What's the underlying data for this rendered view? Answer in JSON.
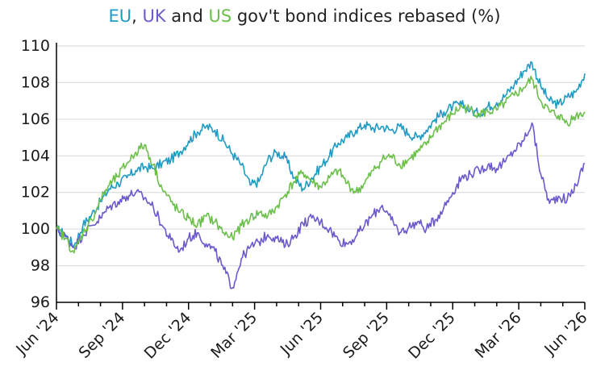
{
  "chart_data": {
    "type": "line",
    "title_parts": [
      {
        "text": "EU",
        "color": "#1f9bc4"
      },
      {
        "text": ", ",
        "color": "#222222"
      },
      {
        "text": "UK",
        "color": "#6a5acd"
      },
      {
        "text": " and ",
        "color": "#222222"
      },
      {
        "text": "US",
        "color": "#6cc04a"
      },
      {
        "text": " gov't bond indices rebased (%)",
        "color": "#222222"
      }
    ],
    "x_ticks": [
      "Jun '24",
      "Sep '24",
      "Dec '24",
      "Mar '25",
      "Jun '25",
      "Sep '25",
      "Dec '25",
      "Mar '26",
      "Jun '26"
    ],
    "y_ticks": [
      "96",
      "98",
      "100",
      "102",
      "104",
      "106",
      "108",
      "110"
    ],
    "ylim": [
      96,
      110
    ],
    "xlim": [
      0,
      24
    ],
    "grid": "horizontal",
    "series": [
      {
        "name": "EU",
        "color": "#1f9bc4",
        "points": [
          [
            0,
            100
          ],
          [
            0.4,
            99.7
          ],
          [
            0.8,
            99.1
          ],
          [
            1.2,
            100.2
          ],
          [
            1.6,
            100.8
          ],
          [
            2,
            101.5
          ],
          [
            2.4,
            102.2
          ],
          [
            2.8,
            102.5
          ],
          [
            3.2,
            102.8
          ],
          [
            3.6,
            103.2
          ],
          [
            4,
            103.4
          ],
          [
            4.4,
            103.3
          ],
          [
            4.8,
            103.6
          ],
          [
            5.2,
            103.8
          ],
          [
            5.6,
            104.2
          ],
          [
            6,
            104.8
          ],
          [
            6.4,
            105.3
          ],
          [
            6.8,
            105.6
          ],
          [
            7.2,
            105.4
          ],
          [
            7.6,
            104.8
          ],
          [
            8,
            104.1
          ],
          [
            8.4,
            103.5
          ],
          [
            8.8,
            102.4
          ],
          [
            9.2,
            102.6
          ],
          [
            9.6,
            103.8
          ],
          [
            10,
            104.2
          ],
          [
            10.4,
            103.9
          ],
          [
            10.8,
            102.8
          ],
          [
            11.2,
            102.2
          ],
          [
            11.6,
            102.8
          ],
          [
            12,
            103.4
          ],
          [
            12.4,
            104.0
          ],
          [
            12.8,
            104.7
          ],
          [
            13.2,
            105.0
          ],
          [
            13.6,
            105.4
          ],
          [
            14,
            105.7
          ],
          [
            14.4,
            105.5
          ],
          [
            14.8,
            105.6
          ],
          [
            15.2,
            105.4
          ],
          [
            15.6,
            105.6
          ],
          [
            16,
            105.2
          ],
          [
            16.4,
            105.0
          ],
          [
            16.8,
            105.4
          ],
          [
            17.2,
            106.0
          ],
          [
            17.6,
            106.4
          ],
          [
            18,
            106.7
          ],
          [
            18.4,
            106.8
          ],
          [
            18.8,
            106.5
          ],
          [
            19.2,
            106.3
          ],
          [
            19.6,
            106.7
          ],
          [
            20,
            106.9
          ],
          [
            20.4,
            107.3
          ],
          [
            20.8,
            107.9
          ],
          [
            21.2,
            108.6
          ],
          [
            21.6,
            109.1
          ],
          [
            22,
            107.8
          ],
          [
            22.4,
            107.0
          ],
          [
            22.8,
            106.8
          ],
          [
            23.2,
            107.2
          ],
          [
            23.6,
            107.5
          ],
          [
            24,
            108.5
          ]
        ]
      },
      {
        "name": "UK",
        "color": "#6a5acd",
        "points": [
          [
            0,
            100
          ],
          [
            0.4,
            99.6
          ],
          [
            0.8,
            99.0
          ],
          [
            1.2,
            99.7
          ],
          [
            1.6,
            100.2
          ],
          [
            2,
            100.6
          ],
          [
            2.4,
            101.2
          ],
          [
            2.8,
            101.5
          ],
          [
            3.2,
            101.8
          ],
          [
            3.6,
            102.0
          ],
          [
            4,
            101.7
          ],
          [
            4.4,
            101.2
          ],
          [
            4.8,
            100.2
          ],
          [
            5.2,
            99.4
          ],
          [
            5.6,
            98.8
          ],
          [
            6,
            99.5
          ],
          [
            6.4,
            99.8
          ],
          [
            6.8,
            99.2
          ],
          [
            7.2,
            98.8
          ],
          [
            7.6,
            97.8
          ],
          [
            8,
            96.8
          ],
          [
            8.4,
            98.4
          ],
          [
            8.8,
            99.0
          ],
          [
            9.2,
            99.3
          ],
          [
            9.6,
            99.7
          ],
          [
            10,
            99.5
          ],
          [
            10.4,
            99.1
          ],
          [
            10.8,
            99.6
          ],
          [
            11.2,
            100.3
          ],
          [
            11.6,
            100.6
          ],
          [
            12,
            100.4
          ],
          [
            12.4,
            100.0
          ],
          [
            12.8,
            99.4
          ],
          [
            13.2,
            99.2
          ],
          [
            13.6,
            99.6
          ],
          [
            14,
            100.2
          ],
          [
            14.4,
            100.8
          ],
          [
            14.8,
            101.3
          ],
          [
            15.2,
            100.5
          ],
          [
            15.6,
            99.8
          ],
          [
            16,
            100.1
          ],
          [
            16.4,
            100.4
          ],
          [
            16.8,
            100.0
          ],
          [
            17.2,
            100.5
          ],
          [
            17.6,
            101.2
          ],
          [
            18,
            102.0
          ],
          [
            18.4,
            102.8
          ],
          [
            18.8,
            103.0
          ],
          [
            19.2,
            103.2
          ],
          [
            19.6,
            103.5
          ],
          [
            20,
            103.3
          ],
          [
            20.4,
            103.7
          ],
          [
            20.8,
            104.3
          ],
          [
            21.2,
            104.8
          ],
          [
            21.6,
            105.8
          ],
          [
            22,
            103.0
          ],
          [
            22.4,
            101.4
          ],
          [
            22.8,
            101.8
          ],
          [
            23.2,
            101.6
          ],
          [
            23.6,
            102.4
          ],
          [
            24,
            103.6
          ]
        ]
      },
      {
        "name": "US",
        "color": "#6cc04a",
        "points": [
          [
            0,
            100
          ],
          [
            0.4,
            99.5
          ],
          [
            0.8,
            98.7
          ],
          [
            1.2,
            99.8
          ],
          [
            1.6,
            100.5
          ],
          [
            2,
            101.6
          ],
          [
            2.4,
            102.4
          ],
          [
            2.8,
            102.9
          ],
          [
            3.2,
            103.6
          ],
          [
            3.6,
            104.2
          ],
          [
            4,
            104.6
          ],
          [
            4.4,
            103.5
          ],
          [
            4.8,
            102.2
          ],
          [
            5.2,
            101.5
          ],
          [
            5.6,
            100.9
          ],
          [
            6,
            100.6
          ],
          [
            6.4,
            100.2
          ],
          [
            6.8,
            100.7
          ],
          [
            7.2,
            100.4
          ],
          [
            7.6,
            99.8
          ],
          [
            8,
            99.5
          ],
          [
            8.4,
            100.2
          ],
          [
            8.8,
            100.6
          ],
          [
            9.2,
            100.9
          ],
          [
            9.6,
            100.7
          ],
          [
            10,
            101.2
          ],
          [
            10.4,
            101.9
          ],
          [
            10.8,
            102.6
          ],
          [
            11.2,
            103.1
          ],
          [
            11.6,
            102.6
          ],
          [
            12,
            102.3
          ],
          [
            12.4,
            102.8
          ],
          [
            12.8,
            103.2
          ],
          [
            13.2,
            102.5
          ],
          [
            13.6,
            102.0
          ],
          [
            14,
            102.5
          ],
          [
            14.4,
            103.2
          ],
          [
            14.8,
            103.8
          ],
          [
            15.2,
            104.0
          ],
          [
            15.6,
            103.5
          ],
          [
            16,
            103.8
          ],
          [
            16.4,
            104.2
          ],
          [
            16.8,
            104.6
          ],
          [
            17.2,
            105.4
          ],
          [
            17.6,
            105.8
          ],
          [
            18,
            106.3
          ],
          [
            18.4,
            106.7
          ],
          [
            18.8,
            106.5
          ],
          [
            19.2,
            106.3
          ],
          [
            19.6,
            106.4
          ],
          [
            20,
            106.5
          ],
          [
            20.4,
            106.9
          ],
          [
            20.8,
            107.3
          ],
          [
            21.2,
            107.7
          ],
          [
            21.6,
            108.2
          ],
          [
            22,
            107.0
          ],
          [
            22.4,
            106.4
          ],
          [
            22.8,
            106.2
          ],
          [
            23.2,
            105.8
          ],
          [
            23.6,
            106.2
          ],
          [
            24,
            106.4
          ]
        ]
      }
    ]
  }
}
